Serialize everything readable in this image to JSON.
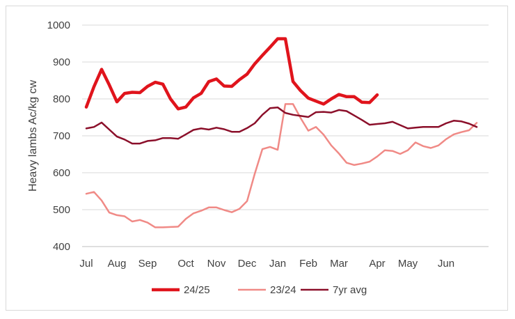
{
  "chart_data": {
    "type": "line",
    "ylabel": "Heavy lambs Ac/kg cw",
    "ylim": [
      400,
      1000
    ],
    "yticks": [
      400,
      500,
      600,
      700,
      800,
      900,
      1000
    ],
    "grid": "horizontal",
    "legend_position": "bottom",
    "x_count": 53,
    "x_tick_labels": [
      {
        "label": "Jul",
        "i": 0
      },
      {
        "label": "Aug",
        "i": 4
      },
      {
        "label": "Sep",
        "i": 8
      },
      {
        "label": "Oct",
        "i": 13
      },
      {
        "label": "Nov",
        "i": 17
      },
      {
        "label": "Dec",
        "i": 21
      },
      {
        "label": "Jan",
        "i": 25
      },
      {
        "label": "Feb",
        "i": 29
      },
      {
        "label": "Mar",
        "i": 33
      },
      {
        "label": "Apr",
        "i": 38
      },
      {
        "label": "May",
        "i": 42
      },
      {
        "label": "Jun",
        "i": 47
      }
    ],
    "series": [
      {
        "name": "24/25",
        "color": "#e0141c",
        "width": 4.5,
        "values": [
          778,
          833,
          880,
          838,
          792,
          815,
          818,
          817,
          834,
          845,
          840,
          800,
          773,
          778,
          803,
          815,
          847,
          854,
          835,
          834,
          852,
          867,
          895,
          918,
          940,
          963,
          963,
          847,
          822,
          802,
          794,
          786,
          800,
          812,
          806,
          806,
          791,
          790,
          811
        ]
      },
      {
        "name": "23/24",
        "color": "#f08a86",
        "width": 2.5,
        "values": [
          543,
          548,
          525,
          492,
          485,
          482,
          468,
          472,
          465,
          452,
          452,
          453,
          454,
          475,
          490,
          497,
          506,
          506,
          499,
          493,
          502,
          523,
          597,
          664,
          670,
          662,
          786,
          786,
          748,
          714,
          724,
          703,
          674,
          652,
          627,
          621,
          625,
          630,
          644,
          661,
          659,
          651,
          661,
          682,
          672,
          667,
          674,
          691,
          704,
          710,
          715,
          735
        ]
      },
      {
        "name": "7yr avg",
        "color": "#8b0f2a",
        "width": 2.5,
        "values": [
          720,
          724,
          736,
          717,
          698,
          690,
          679,
          679,
          686,
          688,
          694,
          694,
          692,
          704,
          716,
          720,
          717,
          722,
          718,
          711,
          711,
          721,
          734,
          757,
          775,
          777,
          762,
          757,
          754,
          751,
          764,
          765,
          763,
          770,
          767,
          755,
          743,
          730,
          732,
          734,
          738,
          729,
          720,
          722,
          724,
          724,
          724,
          734,
          741,
          739,
          733,
          724
        ]
      }
    ]
  }
}
